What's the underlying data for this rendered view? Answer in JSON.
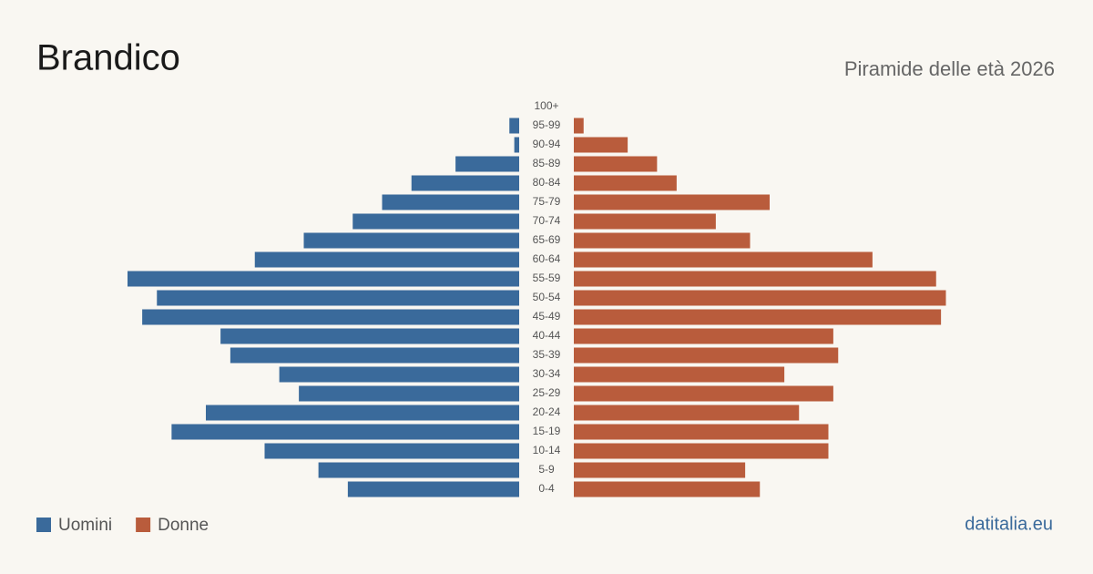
{
  "chart_data": {
    "type": "pyramid",
    "title": "Brandico",
    "subtitle": "Piramide delle età 2026",
    "categories": [
      "100+",
      "95-99",
      "90-94",
      "85-89",
      "80-84",
      "75-79",
      "70-74",
      "65-69",
      "60-64",
      "55-59",
      "50-54",
      "45-49",
      "40-44",
      "35-39",
      "30-34",
      "25-29",
      "20-24",
      "15-19",
      "10-14",
      "5-9",
      "0-4"
    ],
    "series": [
      {
        "name": "Uomini",
        "color": "#3a6a9b",
        "values": [
          0,
          2,
          1,
          13,
          22,
          28,
          34,
          44,
          54,
          80,
          74,
          77,
          61,
          59,
          49,
          45,
          64,
          71,
          52,
          41,
          35
        ]
      },
      {
        "name": "Donne",
        "color": "#b95c3c",
        "values": [
          0,
          2,
          11,
          17,
          21,
          40,
          29,
          36,
          61,
          74,
          76,
          75,
          53,
          54,
          43,
          53,
          46,
          52,
          52,
          35,
          38
        ]
      }
    ],
    "source": "datitalia.eu"
  }
}
